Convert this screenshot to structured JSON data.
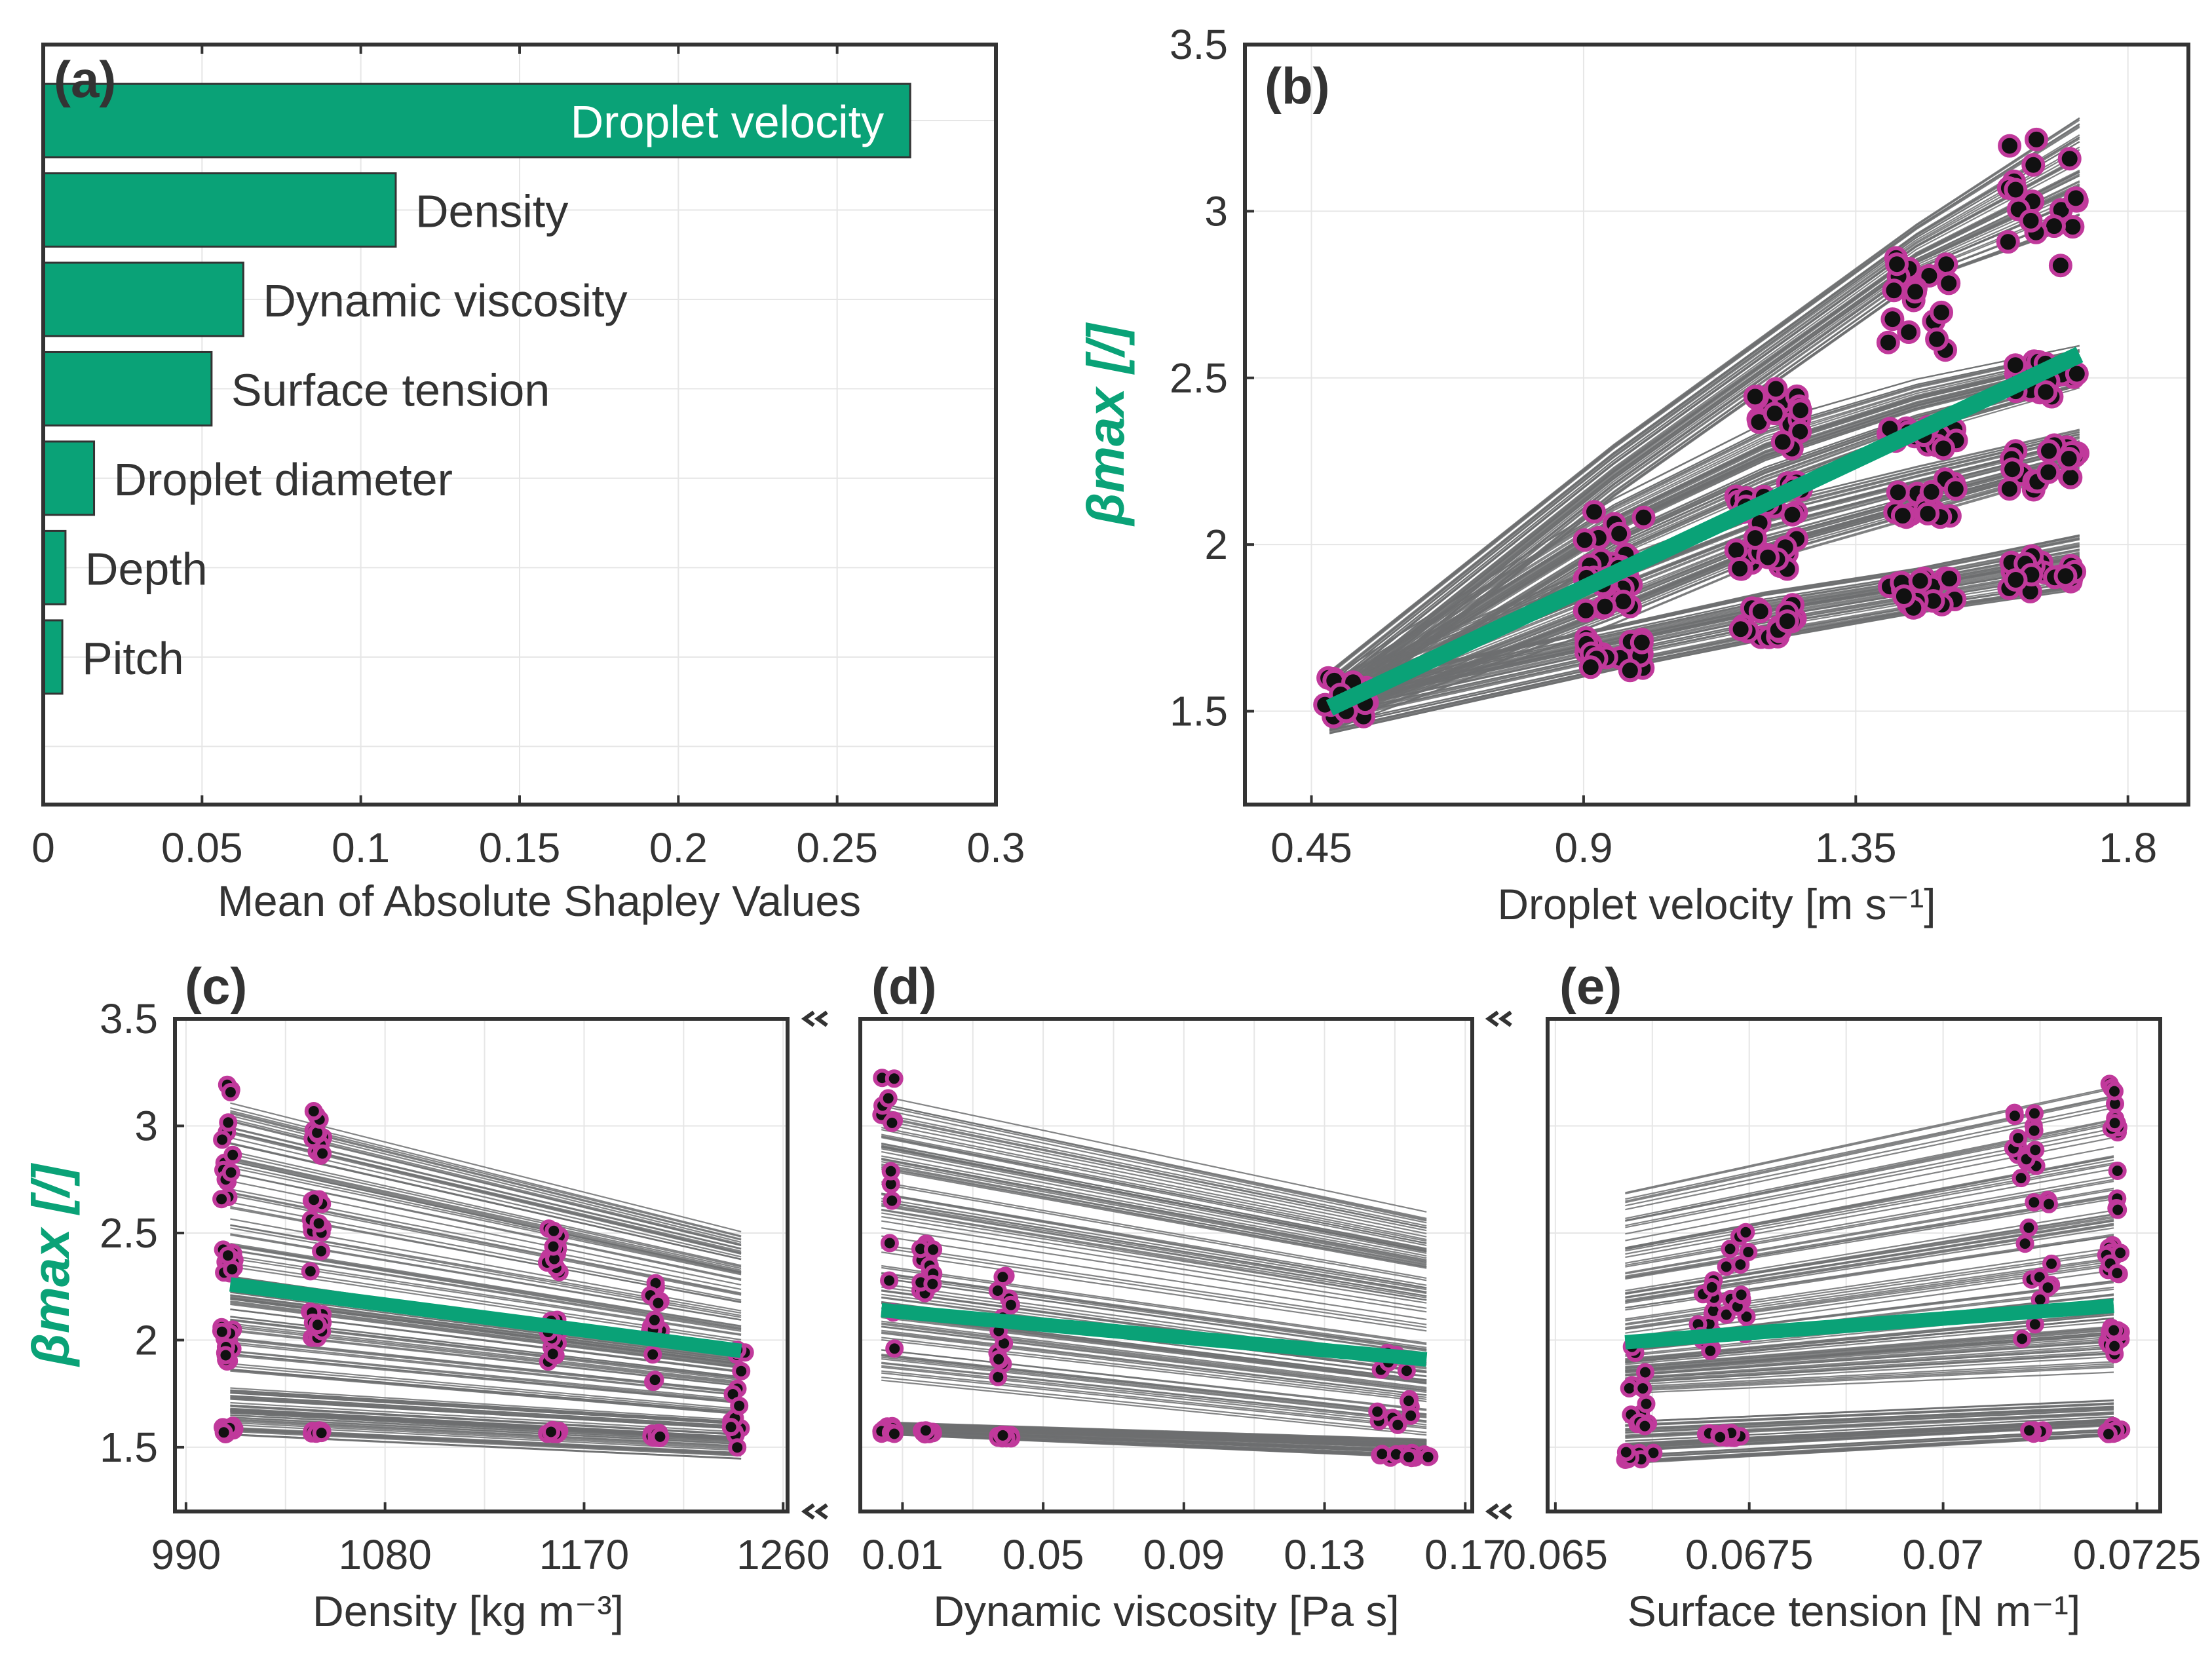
{
  "colors": {
    "green": "#0aa277",
    "magenta": "#c0399b",
    "gray_line": "#6d6e70",
    "axis": "#333333",
    "grid": "#e6e6e6",
    "dot": "#111111"
  },
  "chart_data": [
    {
      "type": "bar",
      "orientation": "horizontal",
      "panel": "(a)",
      "categories": [
        "Droplet velocity",
        "Density",
        "Dynamic viscosity",
        "Surface tension",
        "Droplet diameter",
        "Depth",
        "Pitch"
      ],
      "values": [
        0.273,
        0.111,
        0.063,
        0.053,
        0.016,
        0.007,
        0.006
      ],
      "xlabel": "Mean of Absolute Shapley Values",
      "xlim": [
        0,
        0.3
      ],
      "xticks": [
        "0",
        "0.05",
        "0.1",
        "0.15",
        "0.2",
        "0.25",
        "0.3"
      ],
      "grid": true
    },
    {
      "type": "line+scatter",
      "panel": "(b)",
      "xlabel": "Droplet velocity [m s⁻¹]",
      "ylabel": "βmax [/]",
      "xlim": [
        0.34,
        1.9
      ],
      "ylim": [
        1.22,
        3.5
      ],
      "xticks": [
        "0.45",
        "0.9",
        "1.35",
        "1.8"
      ],
      "yticks": [
        "1.5",
        "2",
        "2.5",
        "3",
        "3.5"
      ],
      "mean_line": {
        "x": [
          0.48,
          1.72
        ],
        "y": [
          1.51,
          2.57
        ]
      },
      "ice_bands": [
        {
          "x": [
            0.48,
            0.95,
            1.2,
            1.45,
            1.72
          ],
          "low": [
            1.46,
            2.14,
            2.46,
            2.78,
            2.95
          ],
          "high": [
            1.62,
            2.3,
            2.63,
            2.96,
            3.28
          ]
        },
        {
          "x": [
            0.48,
            0.95,
            1.2,
            1.45,
            1.72
          ],
          "low": [
            1.44,
            1.96,
            2.16,
            2.33,
            2.47
          ],
          "high": [
            1.6,
            2.14,
            2.37,
            2.5,
            2.6
          ]
        },
        {
          "x": [
            0.48,
            0.95,
            1.2,
            1.45,
            1.72
          ],
          "low": [
            1.44,
            1.76,
            1.95,
            2.08,
            2.22
          ],
          "high": [
            1.6,
            1.96,
            2.13,
            2.24,
            2.35
          ]
        },
        {
          "x": [
            0.48,
            0.95,
            1.2,
            1.45,
            1.72
          ],
          "low": [
            1.43,
            1.62,
            1.71,
            1.79,
            1.86
          ],
          "high": [
            1.58,
            1.76,
            1.86,
            1.93,
            2.03
          ]
        }
      ],
      "point_groups": [
        {
          "x": [
            0.47,
            0.55
          ],
          "y": [
            1.45,
            1.6
          ]
        },
        {
          "x": [
            0.9,
            1.0
          ],
          "y": [
            1.9,
            2.1
          ]
        },
        {
          "x": [
            0.9,
            1.0
          ],
          "y": [
            1.8,
            1.92
          ]
        },
        {
          "x": [
            0.9,
            1.0
          ],
          "y": [
            1.62,
            1.72
          ]
        },
        {
          "x": [
            1.15,
            1.26
          ],
          "y": [
            2.28,
            2.48
          ]
        },
        {
          "x": [
            1.15,
            1.26
          ],
          "y": [
            2.06,
            2.2
          ]
        },
        {
          "x": [
            1.15,
            1.26
          ],
          "y": [
            1.92,
            2.02
          ]
        },
        {
          "x": [
            1.15,
            1.26
          ],
          "y": [
            1.72,
            1.82
          ]
        },
        {
          "x": [
            1.4,
            1.52
          ],
          "y": [
            2.58,
            2.86
          ]
        },
        {
          "x": [
            1.4,
            1.52
          ],
          "y": [
            2.28,
            2.36
          ]
        },
        {
          "x": [
            1.4,
            1.52
          ],
          "y": [
            2.08,
            2.2
          ]
        },
        {
          "x": [
            1.4,
            1.52
          ],
          "y": [
            1.8,
            1.9
          ]
        },
        {
          "x": [
            1.6,
            1.72
          ],
          "y": [
            2.78,
            3.22
          ]
        },
        {
          "x": [
            1.6,
            1.72
          ],
          "y": [
            2.42,
            2.55
          ]
        },
        {
          "x": [
            1.6,
            1.72
          ],
          "y": [
            2.15,
            2.3
          ]
        },
        {
          "x": [
            1.6,
            1.72
          ],
          "y": [
            1.85,
            1.98
          ]
        }
      ]
    },
    {
      "type": "line+scatter",
      "panel": "(c)",
      "xlabel": "Density [kg m⁻³]",
      "ylabel": "βmax [/]",
      "xlim": [
        985,
        1262
      ],
      "ylim": [
        1.2,
        3.5
      ],
      "xticks": [
        "990",
        "1080",
        "1170",
        "1260"
      ],
      "yticks": [
        "1.5",
        "2",
        "2.5",
        "3",
        "3.5"
      ],
      "mean_line": {
        "x": [
          1010,
          1241
        ],
        "y": [
          2.26,
          1.95
        ]
      },
      "ice_bands": [
        {
          "x": [
            1010,
            1241
          ],
          "low": [
            2.28,
            1.95
          ],
          "high": [
            3.15,
            2.53
          ]
        },
        {
          "x": [
            1010,
            1241
          ],
          "low": [
            1.85,
            1.65
          ],
          "high": [
            2.3,
            1.96
          ]
        },
        {
          "x": [
            1010,
            1241
          ],
          "low": [
            1.55,
            1.44
          ],
          "high": [
            1.78,
            1.63
          ]
        }
      ],
      "point_groups": [
        {
          "x": [
            1006,
            1012
          ],
          "y": [
            2.65,
            3.24
          ]
        },
        {
          "x": [
            1006,
            1012
          ],
          "y": [
            2.3,
            2.45
          ]
        },
        {
          "x": [
            1006,
            1012
          ],
          "y": [
            1.9,
            2.06
          ]
        },
        {
          "x": [
            1006,
            1012
          ],
          "y": [
            1.56,
            1.6
          ]
        },
        {
          "x": [
            1046,
            1052
          ],
          "y": [
            2.85,
            3.07
          ]
        },
        {
          "x": [
            1046,
            1052
          ],
          "y": [
            2.3,
            2.7
          ]
        },
        {
          "x": [
            1046,
            1052
          ],
          "y": [
            2.0,
            2.15
          ]
        },
        {
          "x": [
            1046,
            1052
          ],
          "y": [
            1.56,
            1.58
          ]
        },
        {
          "x": [
            1153,
            1159
          ],
          "y": [
            2.3,
            2.54
          ]
        },
        {
          "x": [
            1153,
            1159
          ],
          "y": [
            1.9,
            2.1
          ]
        },
        {
          "x": [
            1153,
            1159
          ],
          "y": [
            1.56,
            1.58
          ]
        },
        {
          "x": [
            1199,
            1205
          ],
          "y": [
            1.8,
            2.28
          ]
        },
        {
          "x": [
            1199,
            1205
          ],
          "y": [
            1.54,
            1.57
          ]
        },
        {
          "x": [
            1236,
            1244
          ],
          "y": [
            1.45,
            1.98
          ]
        }
      ]
    },
    {
      "type": "line+scatter",
      "panel": "(d)",
      "xlabel": "Dynamic viscosity [Pa s]",
      "ylabel": "",
      "xlim": [
        -0.002,
        0.172
      ],
      "ylim": [
        1.2,
        3.5
      ],
      "xticks": [
        "0.01",
        "0.05",
        "0.09",
        "0.13",
        "0.17"
      ],
      "yticks": [],
      "mean_line": {
        "x": [
          0.004,
          0.159
        ],
        "y": [
          2.14,
          1.91
        ]
      },
      "ice_bands": [
        {
          "x": [
            0.004,
            0.159
          ],
          "low": [
            2.35,
            2.0
          ],
          "high": [
            3.15,
            2.6
          ]
        },
        {
          "x": [
            0.004,
            0.159
          ],
          "low": [
            1.8,
            1.55
          ],
          "high": [
            2.35,
            1.99
          ]
        },
        {
          "x": [
            0.004,
            0.159
          ],
          "low": [
            1.56,
            1.45
          ],
          "high": [
            1.62,
            1.54
          ]
        }
      ],
      "point_groups": [
        {
          "x": [
            0.004,
            0.008
          ],
          "y": [
            1.92,
            3.24
          ]
        },
        {
          "x": [
            0.004,
            0.008
          ],
          "y": [
            1.56,
            1.6
          ]
        },
        {
          "x": [
            0.015,
            0.019
          ],
          "y": [
            2.2,
            2.45
          ]
        },
        {
          "x": [
            0.015,
            0.019
          ],
          "y": [
            1.56,
            1.58
          ]
        },
        {
          "x": [
            0.037,
            0.041
          ],
          "y": [
            1.8,
            2.3
          ]
        },
        {
          "x": [
            0.037,
            0.041
          ],
          "y": [
            1.54,
            1.56
          ]
        },
        {
          "x": [
            0.145,
            0.155
          ],
          "y": [
            1.6,
            2.0
          ]
        },
        {
          "x": [
            0.145,
            0.16
          ],
          "y": [
            1.45,
            1.48
          ]
        }
      ]
    },
    {
      "type": "line+scatter",
      "panel": "(e)",
      "xlabel": "Surface tension [N m⁻¹]",
      "ylabel": "",
      "xlim": [
        0.0649,
        0.0728
      ],
      "ylim": [
        1.2,
        3.5
      ],
      "xticks": [
        "0.065",
        "0.0675",
        "0.07",
        "0.0725"
      ],
      "yticks": [],
      "mean_line": {
        "x": [
          0.0659,
          0.0722
        ],
        "y": [
          1.99,
          2.16
        ]
      },
      "ice_bands": [
        {
          "x": [
            0.0659,
            0.0722
          ],
          "low": [
            2.0,
            2.3
          ],
          "high": [
            2.7,
            3.2
          ]
        },
        {
          "x": [
            0.0659,
            0.0722
          ],
          "low": [
            1.75,
            1.85
          ],
          "high": [
            2.0,
            2.28
          ]
        },
        {
          "x": [
            0.0659,
            0.0722
          ],
          "low": [
            1.42,
            1.55
          ],
          "high": [
            1.62,
            1.72
          ]
        }
      ],
      "point_groups": [
        {
          "x": [
            0.0659,
            0.0662
          ],
          "y": [
            1.58,
            1.98
          ]
        },
        {
          "x": [
            0.0659,
            0.0663
          ],
          "y": [
            1.44,
            1.48
          ]
        },
        {
          "x": [
            0.0667,
            0.0671
          ],
          "y": [
            1.9,
            2.28
          ]
        },
        {
          "x": [
            0.0672,
            0.0675
          ],
          "y": [
            2.0,
            2.55
          ]
        },
        {
          "x": [
            0.0669,
            0.0674
          ],
          "y": [
            1.54,
            1.57
          ]
        },
        {
          "x": [
            0.0709,
            0.0712
          ],
          "y": [
            2.8,
            3.08
          ]
        },
        {
          "x": [
            0.071,
            0.0714
          ],
          "y": [
            2.0,
            2.8
          ]
        },
        {
          "x": [
            0.0711,
            0.0713
          ],
          "y": [
            1.56,
            1.58
          ]
        },
        {
          "x": [
            0.0721,
            0.0723
          ],
          "y": [
            2.6,
            3.24
          ]
        },
        {
          "x": [
            0.0721,
            0.0723
          ],
          "y": [
            2.28,
            2.45
          ]
        },
        {
          "x": [
            0.0721,
            0.0723
          ],
          "y": [
            1.9,
            2.06
          ]
        },
        {
          "x": [
            0.0721,
            0.0723
          ],
          "y": [
            1.56,
            1.6
          ]
        }
      ]
    }
  ]
}
